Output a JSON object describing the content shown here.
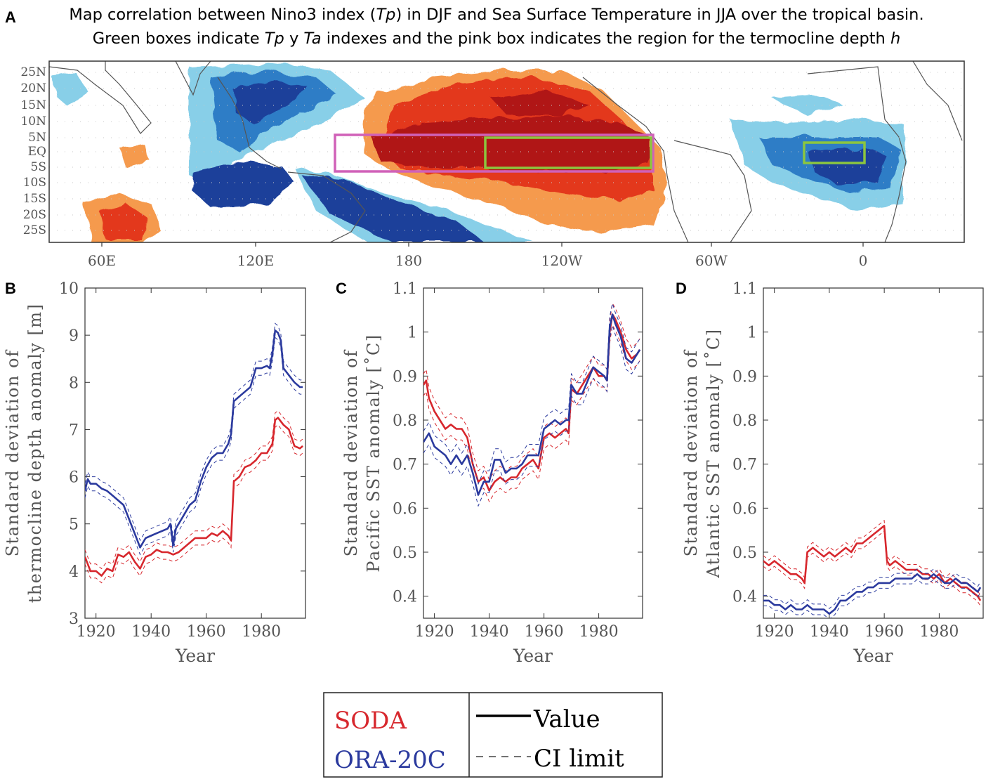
{
  "panel_labels": {
    "a": "A",
    "b": "B",
    "c": "C",
    "d": "D"
  },
  "map": {
    "title_line1_parts": [
      "Map correlation between Nino3 index (",
      "Tp",
      ") in DJF and Sea Surface Temperature in JJA over the tropical basin."
    ],
    "title_line2_parts": [
      "Green boxes indicate ",
      "Tp",
      " y ",
      "Ta",
      " indexes and the pink box indicates the region for the termocline depth ",
      "h"
    ],
    "lat_labels": [
      "25N",
      "20N",
      "15N",
      "10N",
      "5N",
      "EQ",
      "5S",
      "10S",
      "15S",
      "20S",
      "25S"
    ],
    "lon_labels": [
      "60E",
      "120E",
      "180",
      "120W",
      "60W",
      "0"
    ],
    "colors": {
      "dark_red": "#b01218",
      "red": "#e3371f",
      "orange": "#f59a4e",
      "light_blue": "#88cfe8",
      "blue": "#2f7dc6",
      "dark_blue": "#1c3f9a",
      "land_outline": "#555555",
      "pink_box": "#d061b8",
      "green_box": "#8cc63f"
    }
  },
  "legend": {
    "soda": "SODA",
    "ora": "ORA-20C",
    "value": "Value",
    "ci": "CI limit",
    "soda_color": "#d7272d",
    "ora_color": "#2b3a9e"
  },
  "chart_data": [
    {
      "type": "line",
      "panel": "B",
      "title": "",
      "xlabel": "Year",
      "ylabel_line1": "Standard deviation of",
      "ylabel_line2": "thermocline depth anomaly [m]",
      "xlim": [
        1916,
        1996
      ],
      "ylim": [
        3,
        10
      ],
      "xticks": [
        1920,
        1940,
        1960,
        1980
      ],
      "yticks": [
        3,
        4,
        5,
        6,
        7,
        8,
        9,
        10
      ],
      "ytick_labels": [
        "3",
        "4",
        "5",
        "6",
        "7",
        "8",
        "9",
        "10"
      ],
      "ci_offset": 0.15,
      "series": [
        {
          "name": "SODA",
          "x": [
            1916,
            1918,
            1920,
            1922,
            1924,
            1926,
            1928,
            1930,
            1932,
            1934,
            1936,
            1938,
            1940,
            1942,
            1944,
            1946,
            1948,
            1950,
            1952,
            1954,
            1956,
            1958,
            1960,
            1962,
            1964,
            1966,
            1968,
            1969,
            1970,
            1972,
            1974,
            1976,
            1978,
            1980,
            1982,
            1984,
            1985,
            1986,
            1988,
            1990,
            1992,
            1994,
            1995
          ],
          "values": [
            4.3,
            4.0,
            4.0,
            3.9,
            4.05,
            4.0,
            4.35,
            4.3,
            4.4,
            4.2,
            4.05,
            4.3,
            4.35,
            4.45,
            4.4,
            4.4,
            4.35,
            4.4,
            4.5,
            4.6,
            4.7,
            4.7,
            4.7,
            4.8,
            4.75,
            4.85,
            4.75,
            4.65,
            5.9,
            6.0,
            6.2,
            6.25,
            6.35,
            6.5,
            6.5,
            6.7,
            7.2,
            7.25,
            7.1,
            7.0,
            6.65,
            6.6,
            6.65
          ]
        },
        {
          "name": "ORA-20C",
          "x": [
            1916,
            1917,
            1918,
            1920,
            1922,
            1924,
            1926,
            1928,
            1930,
            1932,
            1934,
            1936,
            1938,
            1940,
            1942,
            1944,
            1946,
            1947,
            1948,
            1949,
            1950,
            1952,
            1954,
            1956,
            1958,
            1960,
            1962,
            1964,
            1966,
            1968,
            1969,
            1970,
            1972,
            1974,
            1976,
            1978,
            1980,
            1982,
            1983,
            1984,
            1985,
            1986,
            1987,
            1988,
            1990,
            1992,
            1994,
            1995
          ],
          "values": [
            5.7,
            5.95,
            5.85,
            5.85,
            5.75,
            5.7,
            5.6,
            5.5,
            5.4,
            5.1,
            4.8,
            4.5,
            4.7,
            4.75,
            4.8,
            4.85,
            4.9,
            5.0,
            4.55,
            4.9,
            5.0,
            5.2,
            5.4,
            5.5,
            5.9,
            6.2,
            6.4,
            6.5,
            6.5,
            6.7,
            6.9,
            7.6,
            7.7,
            7.8,
            7.9,
            8.3,
            8.3,
            8.35,
            8.3,
            8.6,
            9.1,
            9.05,
            8.9,
            8.3,
            8.15,
            8.0,
            7.9,
            7.9
          ]
        }
      ]
    },
    {
      "type": "line",
      "panel": "C",
      "title": "",
      "xlabel": "Year",
      "ylabel_line1": "Standard deviation of",
      "ylabel_line2": "Pacific SST anomaly [˚C]",
      "xlim": [
        1916,
        1996
      ],
      "ylim": [
        0.35,
        1.1
      ],
      "xticks": [
        1920,
        1940,
        1960,
        1980
      ],
      "yticks": [
        0.4,
        0.5,
        0.6,
        0.7,
        0.8,
        0.9,
        1.0,
        1.1
      ],
      "ytick_labels": [
        "0.4",
        "0.5",
        "0.6",
        "0.7",
        "0.8",
        "0.9",
        "1",
        "1.1"
      ],
      "ci_offset": 0.025,
      "series": [
        {
          "name": "SODA",
          "x": [
            1916,
            1917,
            1918,
            1920,
            1922,
            1924,
            1926,
            1928,
            1930,
            1932,
            1934,
            1936,
            1938,
            1940,
            1942,
            1944,
            1946,
            1948,
            1950,
            1952,
            1954,
            1956,
            1958,
            1960,
            1962,
            1964,
            1966,
            1968,
            1969,
            1970,
            1972,
            1974,
            1976,
            1978,
            1980,
            1982,
            1983,
            1984,
            1985,
            1986,
            1988,
            1990,
            1992,
            1994,
            1995
          ],
          "values": [
            0.88,
            0.89,
            0.85,
            0.82,
            0.8,
            0.78,
            0.79,
            0.78,
            0.78,
            0.76,
            0.7,
            0.66,
            0.67,
            0.64,
            0.66,
            0.67,
            0.66,
            0.67,
            0.67,
            0.69,
            0.7,
            0.71,
            0.69,
            0.76,
            0.77,
            0.76,
            0.77,
            0.78,
            0.77,
            0.87,
            0.86,
            0.88,
            0.9,
            0.92,
            0.9,
            0.9,
            0.89,
            1.0,
            1.04,
            1.03,
            1.0,
            0.96,
            0.94,
            0.95,
            0.96
          ]
        },
        {
          "name": "ORA-20C",
          "x": [
            1916,
            1918,
            1920,
            1922,
            1924,
            1926,
            1928,
            1930,
            1932,
            1934,
            1936,
            1938,
            1940,
            1942,
            1944,
            1946,
            1948,
            1950,
            1952,
            1954,
            1956,
            1958,
            1960,
            1962,
            1964,
            1966,
            1968,
            1969,
            1970,
            1972,
            1974,
            1976,
            1978,
            1980,
            1982,
            1983,
            1984,
            1985,
            1986,
            1988,
            1990,
            1992,
            1994,
            1995
          ],
          "values": [
            0.75,
            0.77,
            0.74,
            0.73,
            0.72,
            0.7,
            0.72,
            0.7,
            0.72,
            0.68,
            0.63,
            0.66,
            0.66,
            0.71,
            0.71,
            0.68,
            0.69,
            0.69,
            0.7,
            0.72,
            0.72,
            0.72,
            0.78,
            0.79,
            0.8,
            0.79,
            0.8,
            0.8,
            0.88,
            0.86,
            0.86,
            0.89,
            0.92,
            0.91,
            0.9,
            0.89,
            1.01,
            1.04,
            1.02,
            0.99,
            0.94,
            0.93,
            0.95,
            0.96
          ]
        }
      ]
    },
    {
      "type": "line",
      "panel": "D",
      "title": "",
      "xlabel": "Year",
      "ylabel_line1": "Standard deviation of",
      "ylabel_line2": "Atlantic SST anomaly [˚C]",
      "xlim": [
        1916,
        1996
      ],
      "ylim": [
        0.35,
        1.1
      ],
      "xticks": [
        1920,
        1940,
        1960,
        1980
      ],
      "yticks": [
        0.4,
        0.5,
        0.6,
        0.7,
        0.8,
        0.9,
        1.0,
        1.1
      ],
      "ytick_labels": [
        "0.4",
        "0.5",
        "0.6",
        "0.7",
        "0.8",
        "0.9",
        "1",
        "1.1"
      ],
      "ci_offset": 0.012,
      "series": [
        {
          "name": "SODA",
          "x": [
            1916,
            1918,
            1920,
            1922,
            1924,
            1926,
            1928,
            1930,
            1931,
            1932,
            1934,
            1936,
            1938,
            1940,
            1942,
            1944,
            1946,
            1948,
            1950,
            1952,
            1954,
            1956,
            1958,
            1960,
            1961,
            1962,
            1964,
            1966,
            1968,
            1970,
            1972,
            1974,
            1976,
            1978,
            1980,
            1982,
            1984,
            1986,
            1988,
            1990,
            1992,
            1994,
            1995
          ],
          "values": [
            0.48,
            0.47,
            0.48,
            0.47,
            0.46,
            0.45,
            0.45,
            0.44,
            0.43,
            0.5,
            0.51,
            0.5,
            0.49,
            0.5,
            0.49,
            0.5,
            0.51,
            0.5,
            0.52,
            0.52,
            0.53,
            0.54,
            0.55,
            0.56,
            0.48,
            0.47,
            0.48,
            0.47,
            0.46,
            0.46,
            0.46,
            0.45,
            0.45,
            0.44,
            0.45,
            0.43,
            0.44,
            0.43,
            0.42,
            0.42,
            0.41,
            0.4,
            0.39
          ]
        },
        {
          "name": "ORA-20C",
          "x": [
            1916,
            1918,
            1920,
            1922,
            1924,
            1926,
            1928,
            1930,
            1932,
            1934,
            1936,
            1938,
            1940,
            1942,
            1944,
            1946,
            1948,
            1950,
            1952,
            1954,
            1956,
            1958,
            1960,
            1962,
            1964,
            1966,
            1968,
            1970,
            1972,
            1974,
            1976,
            1978,
            1980,
            1982,
            1984,
            1986,
            1988,
            1990,
            1992,
            1994,
            1995
          ],
          "values": [
            0.39,
            0.39,
            0.38,
            0.38,
            0.37,
            0.38,
            0.37,
            0.37,
            0.38,
            0.37,
            0.37,
            0.37,
            0.36,
            0.37,
            0.39,
            0.39,
            0.4,
            0.41,
            0.41,
            0.42,
            0.42,
            0.43,
            0.43,
            0.43,
            0.44,
            0.44,
            0.44,
            0.44,
            0.45,
            0.44,
            0.44,
            0.45,
            0.44,
            0.43,
            0.43,
            0.44,
            0.43,
            0.43,
            0.42,
            0.41,
            0.42
          ]
        }
      ]
    }
  ]
}
